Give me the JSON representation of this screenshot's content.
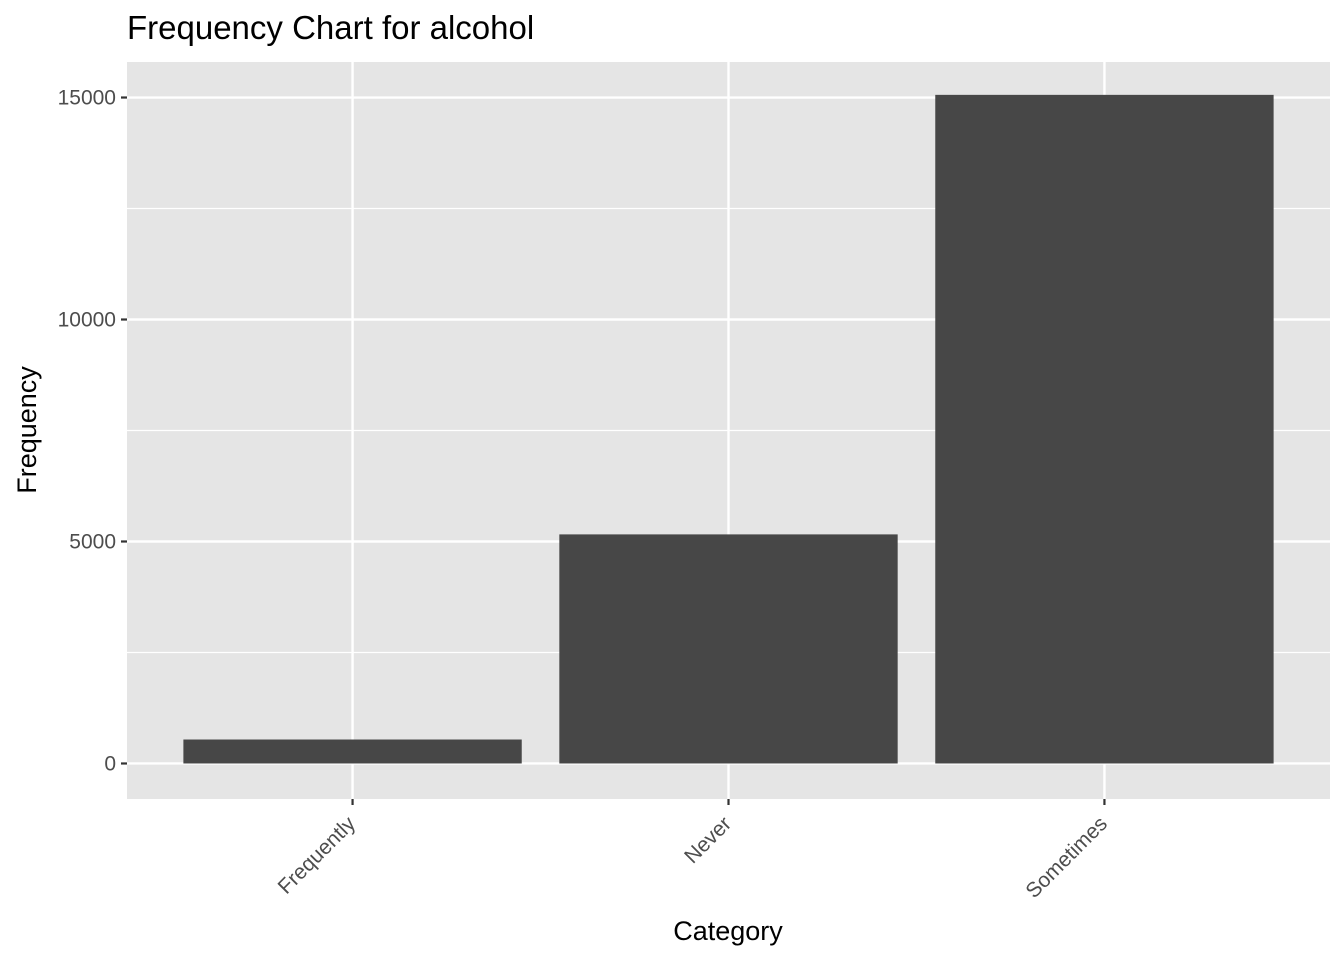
{
  "chart_data": {
    "type": "bar",
    "title": "Frequency Chart for alcohol",
    "xlabel": "Category",
    "ylabel": "Frequency",
    "categories": [
      "Frequently",
      "Never",
      "Sometimes"
    ],
    "values": [
      540,
      5160,
      15060
    ],
    "ylim": [
      -800,
      15800
    ],
    "yticks": [
      0,
      5000,
      10000,
      15000
    ],
    "ytick_labels": [
      "0",
      "5000",
      "10000",
      "15000"
    ],
    "grid": true,
    "legend": "none",
    "colors": {
      "bar": "#474747",
      "panel": "#e5e5e5",
      "grid": "#ffffff"
    }
  }
}
